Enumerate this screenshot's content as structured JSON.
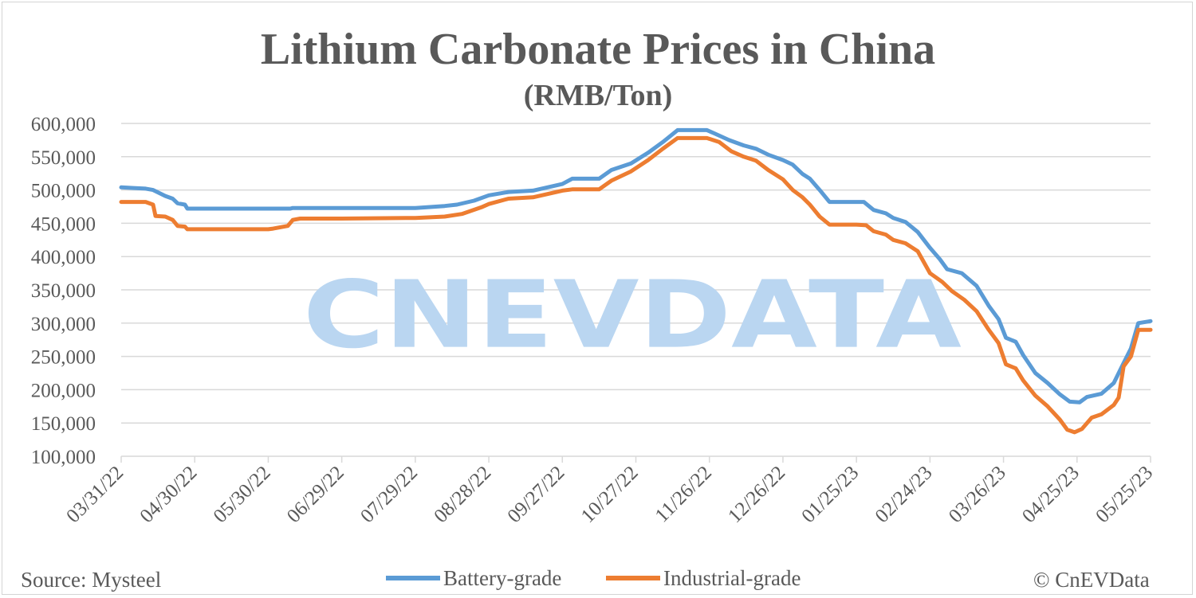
{
  "title": "Lithium Carbonate Prices in China",
  "subtitle": "(RMB/Ton)",
  "watermark": "CNEVDATA",
  "source_text": "Source: Mysteel",
  "copyright_text": "© CnEVData",
  "colors": {
    "battery": "#5b9bd5",
    "industrial": "#ed7d31",
    "watermark": "#bad6f1",
    "grid": "#d9d9d9",
    "text": "#595959"
  },
  "chart_data": {
    "type": "line",
    "title": "Lithium Carbonate Prices in China",
    "subtitle": "(RMB/Ton)",
    "xlabel": "",
    "ylabel": "",
    "ylim": [
      100000,
      600000
    ],
    "y_ticks": [
      100000,
      150000,
      200000,
      250000,
      300000,
      350000,
      400000,
      450000,
      500000,
      550000,
      600000
    ],
    "y_tick_labels": [
      "100,000",
      "150,000",
      "200,000",
      "250,000",
      "300,000",
      "350,000",
      "400,000",
      "450,000",
      "500,000",
      "550,000",
      "600,000"
    ],
    "x_range": [
      "2022-03-31",
      "2023-05-25"
    ],
    "x_tick_labels": [
      "03/31/22",
      "04/30/22",
      "05/30/22",
      "06/29/22",
      "07/29/22",
      "08/28/22",
      "09/27/22",
      "10/27/22",
      "11/26/22",
      "12/26/22",
      "01/25/23",
      "02/24/23",
      "03/26/23",
      "04/25/23",
      "05/25/23"
    ],
    "grid": true,
    "legend_position": "bottom-center",
    "series": [
      {
        "name": "Battery-grade",
        "color": "#5b9bd5",
        "points": [
          [
            "2022-03-31",
            504000
          ],
          [
            "2022-04-05",
            503000
          ],
          [
            "2022-04-10",
            502000
          ],
          [
            "2022-04-13",
            500000
          ],
          [
            "2022-04-18",
            491000
          ],
          [
            "2022-04-21",
            487000
          ],
          [
            "2022-04-23",
            480000
          ],
          [
            "2022-04-26",
            478000
          ],
          [
            "2022-04-27",
            472000
          ],
          [
            "2022-05-15",
            472000
          ],
          [
            "2022-06-08",
            472000
          ],
          [
            "2022-06-09",
            473000
          ],
          [
            "2022-07-29",
            473000
          ],
          [
            "2022-08-10",
            476000
          ],
          [
            "2022-08-15",
            478000
          ],
          [
            "2022-08-22",
            484000
          ],
          [
            "2022-08-28",
            492000
          ],
          [
            "2022-09-05",
            497000
          ],
          [
            "2022-09-15",
            499000
          ],
          [
            "2022-09-27",
            509000
          ],
          [
            "2022-10-01",
            517000
          ],
          [
            "2022-10-12",
            517000
          ],
          [
            "2022-10-17",
            530000
          ],
          [
            "2022-10-25",
            540000
          ],
          [
            "2022-11-01",
            556000
          ],
          [
            "2022-11-07",
            572000
          ],
          [
            "2022-11-13",
            590000
          ],
          [
            "2022-11-25",
            590000
          ],
          [
            "2022-11-28",
            585000
          ],
          [
            "2022-12-04",
            575000
          ],
          [
            "2022-12-10",
            567000
          ],
          [
            "2022-12-15",
            562000
          ],
          [
            "2022-12-20",
            553000
          ],
          [
            "2022-12-26",
            545000
          ],
          [
            "2022-12-30",
            538000
          ],
          [
            "2023-01-03",
            524000
          ],
          [
            "2023-01-06",
            517000
          ],
          [
            "2023-01-10",
            500000
          ],
          [
            "2023-01-14",
            482000
          ],
          [
            "2023-01-23",
            482000
          ],
          [
            "2023-01-28",
            482000
          ],
          [
            "2023-02-01",
            470000
          ],
          [
            "2023-02-06",
            465000
          ],
          [
            "2023-02-09",
            458000
          ],
          [
            "2023-02-14",
            452000
          ],
          [
            "2023-02-19",
            437000
          ],
          [
            "2023-02-24",
            413000
          ],
          [
            "2023-02-28",
            396000
          ],
          [
            "2023-03-03",
            381000
          ],
          [
            "2023-03-09",
            375000
          ],
          [
            "2023-03-15",
            356000
          ],
          [
            "2023-03-20",
            326000
          ],
          [
            "2023-03-24",
            306000
          ],
          [
            "2023-03-27",
            278000
          ],
          [
            "2023-03-31",
            272000
          ],
          [
            "2023-04-03",
            252000
          ],
          [
            "2023-04-08",
            225000
          ],
          [
            "2023-04-13",
            210000
          ],
          [
            "2023-04-18",
            193000
          ],
          [
            "2023-04-22",
            182000
          ],
          [
            "2023-04-26",
            181000
          ],
          [
            "2023-04-29",
            189000
          ],
          [
            "2023-05-05",
            194000
          ],
          [
            "2023-05-10",
            210000
          ],
          [
            "2023-05-14",
            240000
          ],
          [
            "2023-05-17",
            262000
          ],
          [
            "2023-05-20",
            300000
          ],
          [
            "2023-05-25",
            303000
          ]
        ]
      },
      {
        "name": "Industrial-grade",
        "color": "#ed7d31",
        "points": [
          [
            "2022-03-31",
            482000
          ],
          [
            "2022-04-10",
            482000
          ],
          [
            "2022-04-13",
            478000
          ],
          [
            "2022-04-14",
            461000
          ],
          [
            "2022-04-18",
            460000
          ],
          [
            "2022-04-21",
            455000
          ],
          [
            "2022-04-23",
            446000
          ],
          [
            "2022-04-26",
            445000
          ],
          [
            "2022-04-27",
            441000
          ],
          [
            "2022-05-30",
            441000
          ],
          [
            "2022-06-01",
            442000
          ],
          [
            "2022-06-07",
            446000
          ],
          [
            "2022-06-09",
            455000
          ],
          [
            "2022-06-12",
            457000
          ],
          [
            "2022-06-29",
            457000
          ],
          [
            "2022-07-29",
            458000
          ],
          [
            "2022-08-10",
            460000
          ],
          [
            "2022-08-17",
            464000
          ],
          [
            "2022-08-25",
            474000
          ],
          [
            "2022-08-28",
            479000
          ],
          [
            "2022-09-05",
            487000
          ],
          [
            "2022-09-15",
            489000
          ],
          [
            "2022-09-27",
            499000
          ],
          [
            "2022-10-01",
            501000
          ],
          [
            "2022-10-12",
            501000
          ],
          [
            "2022-10-17",
            514000
          ],
          [
            "2022-10-25",
            528000
          ],
          [
            "2022-11-01",
            545000
          ],
          [
            "2022-11-07",
            562000
          ],
          [
            "2022-11-13",
            578000
          ],
          [
            "2022-11-25",
            578000
          ],
          [
            "2022-11-30",
            572000
          ],
          [
            "2022-12-05",
            558000
          ],
          [
            "2022-12-10",
            550000
          ],
          [
            "2022-12-15",
            544000
          ],
          [
            "2022-12-20",
            530000
          ],
          [
            "2022-12-26",
            516000
          ],
          [
            "2022-12-30",
            500000
          ],
          [
            "2023-01-03",
            489000
          ],
          [
            "2023-01-06",
            478000
          ],
          [
            "2023-01-10",
            460000
          ],
          [
            "2023-01-14",
            448000
          ],
          [
            "2023-01-25",
            448000
          ],
          [
            "2023-01-29",
            447000
          ],
          [
            "2023-02-01",
            438000
          ],
          [
            "2023-02-06",
            433000
          ],
          [
            "2023-02-09",
            425000
          ],
          [
            "2023-02-14",
            420000
          ],
          [
            "2023-02-19",
            408000
          ],
          [
            "2023-02-24",
            375000
          ],
          [
            "2023-03-01",
            362000
          ],
          [
            "2023-03-05",
            348000
          ],
          [
            "2023-03-10",
            335000
          ],
          [
            "2023-03-15",
            318000
          ],
          [
            "2023-03-20",
            290000
          ],
          [
            "2023-03-24",
            270000
          ],
          [
            "2023-03-27",
            238000
          ],
          [
            "2023-03-31",
            232000
          ],
          [
            "2023-04-03",
            214000
          ],
          [
            "2023-04-08",
            191000
          ],
          [
            "2023-04-13",
            175000
          ],
          [
            "2023-04-18",
            155000
          ],
          [
            "2023-04-21",
            140000
          ],
          [
            "2023-04-24",
            136000
          ],
          [
            "2023-04-27",
            141000
          ],
          [
            "2023-05-01",
            158000
          ],
          [
            "2023-05-05",
            163000
          ],
          [
            "2023-05-10",
            177000
          ],
          [
            "2023-05-12",
            188000
          ],
          [
            "2023-05-14",
            235000
          ],
          [
            "2023-05-17",
            250000
          ],
          [
            "2023-05-20",
            290000
          ],
          [
            "2023-05-25",
            290000
          ]
        ]
      }
    ]
  }
}
